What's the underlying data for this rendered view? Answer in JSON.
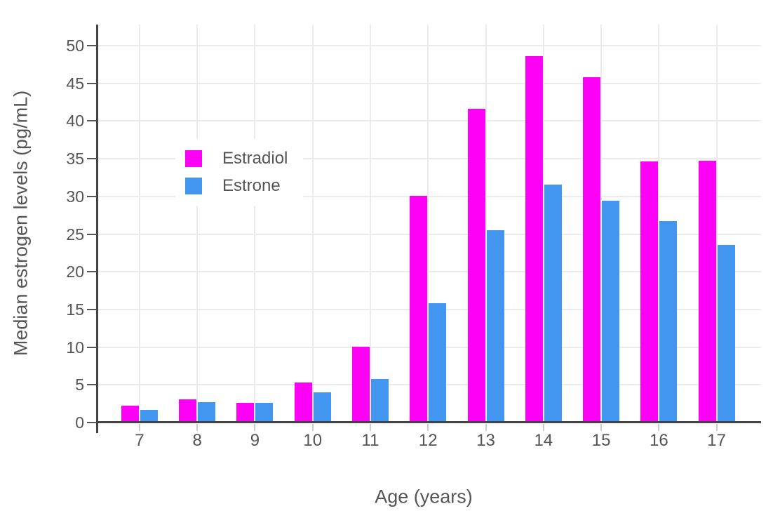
{
  "chart_data": {
    "type": "bar",
    "title": "",
    "xlabel": "Age (years)",
    "ylabel": "Median estrogen levels (pg/mL)",
    "categories": [
      7,
      8,
      9,
      10,
      11,
      12,
      13,
      14,
      15,
      16,
      17
    ],
    "series": [
      {
        "name": "Estradiol",
        "color": "#ff00f6",
        "values": [
          2.2,
          3.1,
          2.6,
          5.3,
          10.1,
          30.1,
          41.6,
          48.6,
          45.8,
          34.6,
          34.7
        ]
      },
      {
        "name": "Estrone",
        "color": "#4296f0",
        "values": [
          1.7,
          2.7,
          2.6,
          4.0,
          5.8,
          15.8,
          25.5,
          31.6,
          29.4,
          26.7,
          23.6
        ]
      }
    ],
    "yticks": [
      0,
      5,
      10,
      15,
      20,
      25,
      30,
      35,
      40,
      45,
      50
    ],
    "ylim": [
      0,
      52.8
    ],
    "xlim": [
      6.26,
      17.77
    ],
    "grid": true,
    "legend": {
      "position": "inside-top-left",
      "entries": [
        "Estradiol",
        "Estrone"
      ]
    }
  },
  "colors": {
    "estradiol": "#ff00f6",
    "estrone": "#4296f0",
    "axis_line": "#444444",
    "grid_line": "#ebebeb",
    "tick_text": "#555555",
    "background": "#ffffff"
  }
}
